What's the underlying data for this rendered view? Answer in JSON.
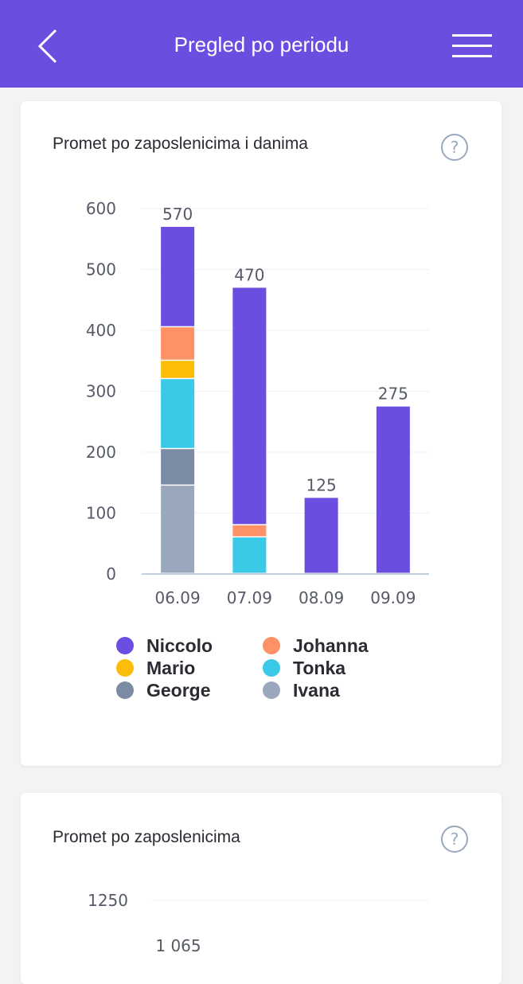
{
  "header": {
    "title": "Pregled po periodu",
    "background": "#6b4ee0",
    "back_icon": "chevron-left-icon",
    "menu_icon": "hamburger-menu-icon"
  },
  "card1": {
    "title": "Promet po zaposlenicima i danima",
    "help_icon": "question-circle-icon"
  },
  "card2": {
    "title": "Promet po zaposlenicima",
    "help_icon": "question-circle-icon"
  },
  "chart_data": [
    {
      "type": "bar",
      "stacked": true,
      "title": "Promet po zaposlenicima i danima",
      "categories": [
        "06.09",
        "07.09",
        "08.09",
        "09.09"
      ],
      "ylim": [
        0,
        600
      ],
      "yticks": [
        0,
        100,
        200,
        300,
        400,
        500,
        600
      ],
      "grid": true,
      "legend_position": "bottom",
      "totals": [
        570,
        470,
        125,
        275
      ],
      "series": [
        {
          "name": "Ivana",
          "color": "#9aa8bd",
          "values": [
            145,
            0,
            0,
            0
          ]
        },
        {
          "name": "George",
          "color": "#7a8ba3",
          "values": [
            60,
            0,
            0,
            0
          ]
        },
        {
          "name": "Tonka",
          "color": "#3bc9e8",
          "values": [
            115,
            60,
            0,
            0
          ]
        },
        {
          "name": "Mario",
          "color": "#fbbd08",
          "values": [
            30,
            0,
            0,
            0
          ]
        },
        {
          "name": "Johanna",
          "color": "#ff9166",
          "values": [
            55,
            20,
            0,
            0
          ]
        },
        {
          "name": "Niccolo",
          "color": "#6b4ee0",
          "values": [
            165,
            390,
            125,
            275
          ]
        }
      ],
      "legend": [
        {
          "name": "Niccolo",
          "color": "#6b4ee0"
        },
        {
          "name": "Johanna",
          "color": "#ff9166"
        },
        {
          "name": "Mario",
          "color": "#fbbd08"
        },
        {
          "name": "Tonka",
          "color": "#3bc9e8"
        },
        {
          "name": "George",
          "color": "#7a8ba3"
        },
        {
          "name": "Ivana",
          "color": "#9aa8bd"
        }
      ]
    },
    {
      "type": "bar",
      "title": "Promet po zaposlenicima",
      "yticks_visible": [
        1250
      ],
      "value_labels_visible": [
        "1 065"
      ]
    }
  ]
}
